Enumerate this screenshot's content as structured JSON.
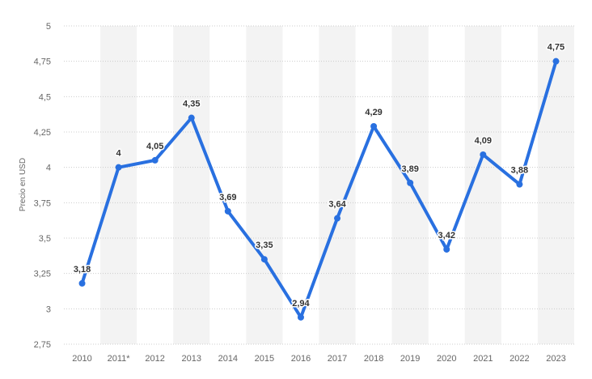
{
  "chart_data": {
    "type": "line",
    "title": "",
    "xlabel": "",
    "ylabel": "Precio en USD",
    "ylim": [
      2.75,
      5
    ],
    "y_ticks": [
      "2,75",
      "3",
      "3,25",
      "3,5",
      "3,75",
      "4",
      "4,25",
      "4,5",
      "4,75",
      "5"
    ],
    "y_tick_values": [
      2.75,
      3,
      3.25,
      3.5,
      3.75,
      4,
      4.25,
      4.5,
      4.75,
      5
    ],
    "categories": [
      "2010",
      "2011*",
      "2012",
      "2013",
      "2014",
      "2015",
      "2016",
      "2017",
      "2018",
      "2019",
      "2020",
      "2021",
      "2022",
      "2023"
    ],
    "series": [
      {
        "values": [
          3.18,
          4,
          4.05,
          4.35,
          3.69,
          3.35,
          2.94,
          3.64,
          4.29,
          3.89,
          3.42,
          4.09,
          3.88,
          4.75
        ],
        "labels": [
          "3,18",
          "4",
          "4,05",
          "4,35",
          "3,69",
          "3,35",
          "2,94",
          "3,64",
          "4,29",
          "3,89",
          "3,42",
          "4,09",
          "3,88",
          "4,75"
        ]
      }
    ],
    "grid": true,
    "legend": "none",
    "colors": {
      "line": "#2970e0",
      "band": "#f3f3f3",
      "grid": "#cccccc"
    }
  }
}
